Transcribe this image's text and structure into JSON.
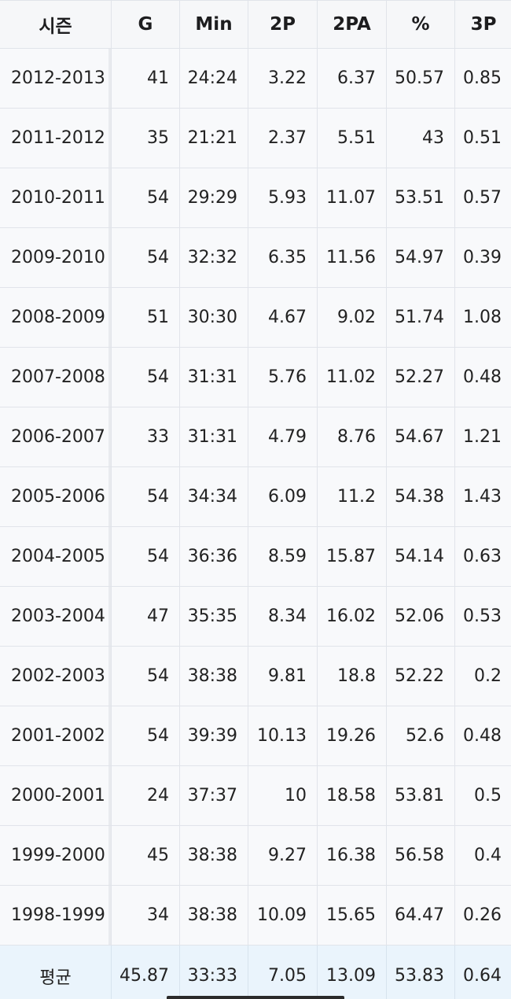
{
  "table": {
    "headers": [
      "시즌",
      "G",
      "Min",
      "2P",
      "2PA",
      "%",
      "3P"
    ],
    "rows": [
      [
        "2012-2013",
        "41",
        "24:24",
        "3.22",
        "6.37",
        "50.57",
        "0.85"
      ],
      [
        "2011-2012",
        "35",
        "21:21",
        "2.37",
        "5.51",
        "43",
        "0.51"
      ],
      [
        "2010-2011",
        "54",
        "29:29",
        "5.93",
        "11.07",
        "53.51",
        "0.57"
      ],
      [
        "2009-2010",
        "54",
        "32:32",
        "6.35",
        "11.56",
        "54.97",
        "0.39"
      ],
      [
        "2008-2009",
        "51",
        "30:30",
        "4.67",
        "9.02",
        "51.74",
        "1.08"
      ],
      [
        "2007-2008",
        "54",
        "31:31",
        "5.76",
        "11.02",
        "52.27",
        "0.48"
      ],
      [
        "2006-2007",
        "33",
        "31:31",
        "4.79",
        "8.76",
        "54.67",
        "1.21"
      ],
      [
        "2005-2006",
        "54",
        "34:34",
        "6.09",
        "11.2",
        "54.38",
        "1.43"
      ],
      [
        "2004-2005",
        "54",
        "36:36",
        "8.59",
        "15.87",
        "54.14",
        "0.63"
      ],
      [
        "2003-2004",
        "47",
        "35:35",
        "8.34",
        "16.02",
        "52.06",
        "0.53"
      ],
      [
        "2002-2003",
        "54",
        "38:38",
        "9.81",
        "18.8",
        "52.22",
        "0.2"
      ],
      [
        "2001-2002",
        "54",
        "39:39",
        "10.13",
        "19.26",
        "52.6",
        "0.48"
      ],
      [
        "2000-2001",
        "24",
        "37:37",
        "10",
        "18.58",
        "53.81",
        "0.5"
      ],
      [
        "1999-2000",
        "45",
        "38:38",
        "9.27",
        "16.38",
        "56.58",
        "0.4"
      ],
      [
        "1998-1999",
        "34",
        "38:38",
        "10.09",
        "15.65",
        "64.47",
        "0.26"
      ]
    ],
    "average": [
      "평균",
      "45.87",
      "33:33",
      "7.05",
      "13.09",
      "53.83",
      "0.64"
    ]
  },
  "colors": {
    "header_bg": "#f6f7f9",
    "row_bg": "#f8f9fb",
    "average_bg": "#eaf4fc",
    "border": "#e1e4ea"
  }
}
